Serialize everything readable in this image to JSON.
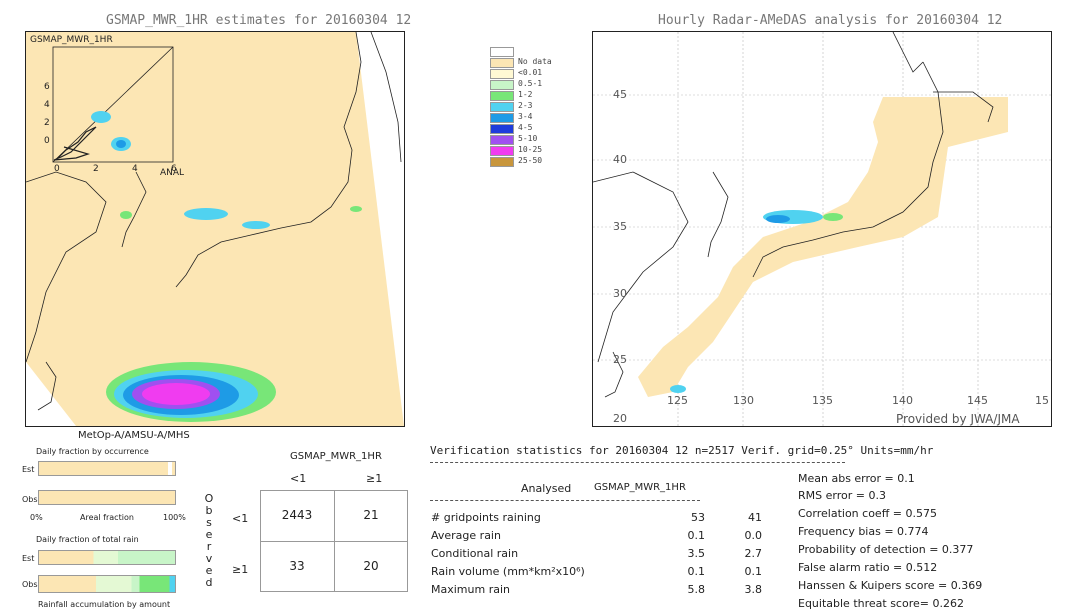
{
  "left_panel": {
    "title": "GSMAP_MWR_1HR estimates for 20160304 12",
    "inset_label": "GSMAP_MWR_1HR",
    "inset_axis_label": "ANAL",
    "inset_y_ticks": [
      "6",
      "4",
      "2",
      "0"
    ],
    "inset_x_ticks": [
      "0",
      "2",
      "4",
      "6"
    ],
    "satellite_label": "MetOp-A/AMSU-A/MHS"
  },
  "right_panel": {
    "title": "Hourly Radar-AMeDAS analysis for 20160304 12",
    "lat_ticks": [
      "45",
      "40",
      "35",
      "30",
      "25",
      "20"
    ],
    "lon_ticks": [
      "125",
      "130",
      "135",
      "140",
      "145",
      "15"
    ],
    "provider": "Provided by JWA/JMA"
  },
  "legend": {
    "items": [
      {
        "label": "",
        "color": "#ffffff"
      },
      {
        "label": "No data",
        "color": "#fce6b4"
      },
      {
        "label": "<0.01",
        "color": "#fff9d4"
      },
      {
        "label": "0.5-1",
        "color": "#c8f5c8"
      },
      {
        "label": "1-2",
        "color": "#78e678"
      },
      {
        "label": "2-3",
        "color": "#50d2f0"
      },
      {
        "label": "3-4",
        "color": "#1e9be6"
      },
      {
        "label": "4-5",
        "color": "#1e3cdc"
      },
      {
        "label": "5-10",
        "color": "#a050f0"
      },
      {
        "label": "10-25",
        "color": "#f03cf0"
      },
      {
        "label": "25-50",
        "color": "#c8963c"
      }
    ]
  },
  "occurrence": {
    "title": "Daily fraction by occurrence",
    "est_label": "Est",
    "obs_label": "Obs",
    "axis_left": "0%",
    "axis_mid": "Areal fraction",
    "axis_right": "100%"
  },
  "total_rain": {
    "title": "Daily fraction of total rain",
    "est_label": "Est",
    "obs_label": "Obs",
    "footer": "Rainfall accumulation by amount"
  },
  "contingency": {
    "header": "GSMAP_MWR_1HR",
    "col_lt": "<1",
    "col_ge": "≥1",
    "row_lt": "<1",
    "row_ge": "≥1",
    "side_label": [
      "O",
      "b",
      "s",
      "e",
      "r",
      "v",
      "e",
      "d"
    ],
    "cells": {
      "a": "2443",
      "b": "21",
      "c": "33",
      "d": "20"
    }
  },
  "verification": {
    "header": "Verification statistics for 20160304 12  n=2517  Verif. grid=0.25°  Units=mm/hr",
    "col_analysed": "Analysed",
    "col_est": "GSMAP_MWR_1HR",
    "rows": [
      {
        "label": "# gridpoints raining",
        "analysed": "53",
        "est": "41"
      },
      {
        "label": "Average rain",
        "analysed": "0.1",
        "est": "0.0"
      },
      {
        "label": "Conditional rain",
        "analysed": "3.5",
        "est": "2.7"
      },
      {
        "label": "Rain volume (mm*km²x10⁶)",
        "analysed": "0.1",
        "est": "0.1"
      },
      {
        "label": "Maximum rain",
        "analysed": "5.8",
        "est": "3.8"
      }
    ],
    "scores": [
      "Mean abs error = 0.1",
      "RMS error = 0.3",
      "Correlation coeff = 0.575",
      "Frequency bias = 0.774",
      "Probability of detection = 0.377",
      "False alarm ratio = 0.512",
      "Hanssen & Kuipers score = 0.369",
      "Equitable threat score= 0.262"
    ]
  },
  "chart_data": [
    {
      "type": "heatmap",
      "title": "GSMAP_MWR_1HR estimates for 20160304 12",
      "legend": [
        "No data",
        "<0.01",
        "0.5-1",
        "1-2",
        "2-3",
        "3-4",
        "4-5",
        "5-10",
        "10-25",
        "25-50"
      ]
    },
    {
      "type": "heatmap",
      "title": "Hourly Radar-AMeDAS analysis for 20160304 12",
      "x_ticks": [
        "125",
        "130",
        "135",
        "140",
        "145",
        "15"
      ],
      "y_ticks": [
        "45",
        "40",
        "35",
        "30",
        "25",
        "20"
      ]
    },
    {
      "type": "table",
      "title": "Verification statistics for 20160304 12",
      "n": "2517",
      "contingency": [
        [
          "2443",
          "21"
        ],
        [
          "33",
          "20"
        ]
      ]
    }
  ]
}
